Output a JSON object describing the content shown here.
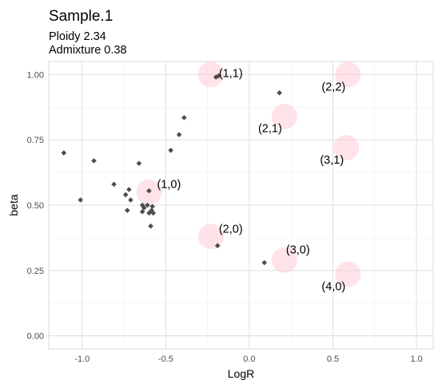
{
  "title": "Sample.1",
  "subtitle_lines": [
    "Ploidy 2.34",
    "Admixture 0.38"
  ],
  "chart_data": {
    "type": "scatter",
    "title": "Sample.1",
    "subtitle": [
      "Ploidy 2.34",
      "Admixture 0.38"
    ],
    "xlabel": "LogR",
    "ylabel": "beta",
    "xlim": [
      -1.2,
      1.1
    ],
    "ylim": [
      -0.05,
      1.05
    ],
    "x_ticks": [
      -1.0,
      -0.5,
      0.0,
      0.5,
      1.0
    ],
    "x_tick_labels": [
      "-1.0",
      "-0.5",
      "0.0",
      "0.5",
      "1.0"
    ],
    "y_ticks": [
      0.0,
      0.25,
      0.5,
      0.75,
      1.0
    ],
    "y_tick_labels": [
      "0.00",
      "0.25",
      "0.50",
      "0.75",
      "1.00"
    ],
    "grid": true,
    "circle_color": "#ffc0cb",
    "point_color": "#4d4d4d",
    "copy_number_states": [
      {
        "label": "(1,1)",
        "x": -0.23,
        "y": 1.0
      },
      {
        "label": "(2,2)",
        "x": 0.59,
        "y": 1.0
      },
      {
        "label": "(2,1)",
        "x": 0.21,
        "y": 0.84
      },
      {
        "label": "(3,1)",
        "x": 0.58,
        "y": 0.72
      },
      {
        "label": "(1,0)",
        "x": -0.6,
        "y": 0.55
      },
      {
        "label": "(2,0)",
        "x": -0.23,
        "y": 0.38
      },
      {
        "label": "(3,0)",
        "x": 0.21,
        "y": 0.29
      },
      {
        "label": "(4,0)",
        "x": 0.59,
        "y": 0.235
      }
    ],
    "segments": [
      {
        "x": -1.11,
        "y": 0.7
      },
      {
        "x": -0.93,
        "y": 0.67
      },
      {
        "x": -1.01,
        "y": 0.52
      },
      {
        "x": -0.81,
        "y": 0.58
      },
      {
        "x": -0.74,
        "y": 0.54
      },
      {
        "x": -0.72,
        "y": 0.56
      },
      {
        "x": -0.71,
        "y": 0.52
      },
      {
        "x": -0.73,
        "y": 0.48
      },
      {
        "x": -0.66,
        "y": 0.66
      },
      {
        "x": -0.64,
        "y": 0.5
      },
      {
        "x": -0.63,
        "y": 0.49
      },
      {
        "x": -0.61,
        "y": 0.5
      },
      {
        "x": -0.64,
        "y": 0.475
      },
      {
        "x": -0.6,
        "y": 0.47
      },
      {
        "x": -0.585,
        "y": 0.48
      },
      {
        "x": -0.575,
        "y": 0.47
      },
      {
        "x": -0.58,
        "y": 0.495
      },
      {
        "x": -0.59,
        "y": 0.42
      },
      {
        "x": -0.6,
        "y": 0.555
      },
      {
        "x": -0.47,
        "y": 0.71
      },
      {
        "x": -0.42,
        "y": 0.77
      },
      {
        "x": -0.39,
        "y": 0.835
      },
      {
        "x": -0.2,
        "y": 0.99
      },
      {
        "x": -0.185,
        "y": 0.995
      },
      {
        "x": 0.18,
        "y": 0.93
      },
      {
        "x": -0.19,
        "y": 0.345
      },
      {
        "x": 0.09,
        "y": 0.28
      }
    ]
  }
}
